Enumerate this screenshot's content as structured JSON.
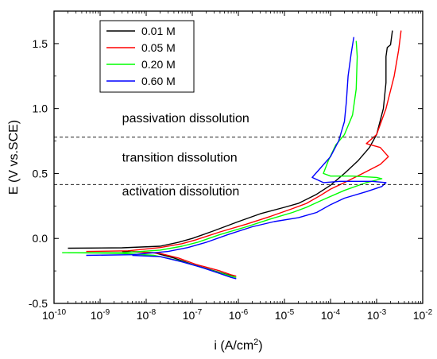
{
  "chart_data": {
    "type": "line",
    "title": "",
    "xlabel": {
      "base": "i (A/cm",
      "sup": "2",
      "tail": ")"
    },
    "ylabel": "E (V vs.SCE)",
    "xscale": "log",
    "xlim": [
      1e-10,
      0.01
    ],
    "ylim": [
      -0.5,
      1.75
    ],
    "grid": false,
    "legend_position": "top-left",
    "x_ticks": [
      {
        "value": 1e-10,
        "exp": "-10"
      },
      {
        "value": 1e-09,
        "exp": "-9"
      },
      {
        "value": 1e-08,
        "exp": "-8"
      },
      {
        "value": 1e-07,
        "exp": "-7"
      },
      {
        "value": 1e-06,
        "exp": "-6"
      },
      {
        "value": 1e-05,
        "exp": "-5"
      },
      {
        "value": 0.0001,
        "exp": "-4"
      },
      {
        "value": 0.001,
        "exp": "-3"
      },
      {
        "value": 0.01,
        "exp": "-2"
      }
    ],
    "y_ticks": [
      {
        "value": -0.5,
        "label": "-0.5"
      },
      {
        "value": 0.0,
        "label": "0.0"
      },
      {
        "value": 0.5,
        "label": "0.5"
      },
      {
        "value": 1.0,
        "label": "1.0"
      },
      {
        "value": 1.5,
        "label": "1.5"
      }
    ],
    "reference_lines": [
      {
        "y": 0.78,
        "style": "dashed"
      },
      {
        "y": 0.415,
        "style": "dashed"
      }
    ],
    "annotations": [
      {
        "text": "passivation dissolution",
        "x": 3e-09,
        "y": 0.895
      },
      {
        "text": "transition dissolution",
        "x": 3e-09,
        "y": 0.59
      },
      {
        "text": "activation dissolution",
        "x": 3e-09,
        "y": 0.33
      }
    ],
    "series": [
      {
        "name": "0.01 M",
        "color": "#000000",
        "anodic": [
          [
            2e-10,
            -0.075
          ],
          [
            3e-09,
            -0.072
          ],
          [
            2e-08,
            -0.06
          ],
          [
            5e-08,
            -0.03
          ],
          [
            1e-07,
            0.0
          ],
          [
            3e-07,
            0.06
          ],
          [
            1e-06,
            0.13
          ],
          [
            3e-06,
            0.19
          ],
          [
            1e-05,
            0.24
          ],
          [
            2e-05,
            0.27
          ],
          [
            5e-05,
            0.34
          ],
          [
            0.0001,
            0.41
          ],
          [
            0.0002,
            0.5
          ],
          [
            0.0004,
            0.6
          ],
          [
            0.0007,
            0.7
          ],
          [
            0.001,
            0.8
          ],
          [
            0.0014,
            1.0
          ],
          [
            0.0016,
            1.2
          ],
          [
            0.0016,
            1.4
          ],
          [
            0.0017,
            1.47
          ],
          [
            0.002,
            1.49
          ],
          [
            0.0022,
            1.6
          ]
        ],
        "cathodic": [
          [
            3e-09,
            -0.1
          ],
          [
            1.5e-08,
            -0.11
          ],
          [
            4e-08,
            -0.15
          ],
          [
            1e-07,
            -0.2
          ],
          [
            3e-07,
            -0.25
          ],
          [
            6e-07,
            -0.28
          ],
          [
            8e-07,
            -0.29
          ]
        ]
      },
      {
        "name": "0.05 M",
        "color": "#ff0000",
        "anodic": [
          [
            5e-10,
            -0.1
          ],
          [
            4e-09,
            -0.095
          ],
          [
            2e-08,
            -0.07
          ],
          [
            6e-08,
            -0.04
          ],
          [
            1.2e-07,
            -0.01
          ],
          [
            4e-07,
            0.05
          ],
          [
            1.5e-06,
            0.11
          ],
          [
            5e-06,
            0.17
          ],
          [
            1.5e-05,
            0.23
          ],
          [
            3e-05,
            0.27
          ],
          [
            6e-05,
            0.33
          ],
          [
            0.0001,
            0.38
          ],
          [
            0.0002,
            0.43
          ],
          [
            0.0005,
            0.5
          ],
          [
            0.0012,
            0.57
          ],
          [
            0.0018,
            0.63
          ],
          [
            0.0012,
            0.7
          ],
          [
            0.0006,
            0.73
          ],
          [
            0.001,
            0.8
          ],
          [
            0.0016,
            1.0
          ],
          [
            0.0024,
            1.25
          ],
          [
            0.003,
            1.45
          ],
          [
            0.0034,
            1.6
          ]
        ],
        "cathodic": [
          [
            5e-09,
            -0.1
          ],
          [
            2e-08,
            -0.115
          ],
          [
            5e-08,
            -0.15
          ],
          [
            1.2e-07,
            -0.2
          ],
          [
            4e-07,
            -0.25
          ],
          [
            7e-07,
            -0.28
          ],
          [
            9e-07,
            -0.29
          ]
        ]
      },
      {
        "name": "0.20 M",
        "color": "#00ff00",
        "anodic": [
          [
            1.5e-10,
            -0.11
          ],
          [
            3e-09,
            -0.11
          ],
          [
            2e-08,
            -0.09
          ],
          [
            6e-08,
            -0.06
          ],
          [
            1.3e-07,
            -0.03
          ],
          [
            4e-07,
            0.03
          ],
          [
            1.5e-06,
            0.09
          ],
          [
            5e-06,
            0.15
          ],
          [
            1.5e-05,
            0.2
          ],
          [
            3e-05,
            0.24
          ],
          [
            7e-05,
            0.3
          ],
          [
            0.0002,
            0.37
          ],
          [
            0.0006,
            0.43
          ],
          [
            0.0013,
            0.46
          ],
          [
            0.001,
            0.47
          ],
          [
            0.0003,
            0.48
          ],
          [
            0.0001,
            0.48
          ],
          [
            7e-05,
            0.5
          ],
          [
            9e-05,
            0.6
          ],
          [
            0.00013,
            0.72
          ],
          [
            0.0002,
            0.8
          ],
          [
            0.0003,
            0.95
          ],
          [
            0.00036,
            1.15
          ],
          [
            0.00038,
            1.4
          ],
          [
            0.00036,
            1.52
          ]
        ],
        "cathodic": [
          [
            2e-10,
            -0.11
          ],
          [
            3e-09,
            -0.115
          ],
          [
            1.5e-08,
            -0.13
          ],
          [
            5e-08,
            -0.17
          ],
          [
            1.2e-07,
            -0.21
          ],
          [
            3.5e-07,
            -0.26
          ],
          [
            7e-07,
            -0.29
          ],
          [
            9e-07,
            -0.3
          ]
        ]
      },
      {
        "name": "0.60 M",
        "color": "#0000ff",
        "anodic": [
          [
            5e-10,
            -0.13
          ],
          [
            5e-09,
            -0.125
          ],
          [
            3e-08,
            -0.1
          ],
          [
            8e-08,
            -0.07
          ],
          [
            2e-07,
            -0.03
          ],
          [
            6e-07,
            0.03
          ],
          [
            2e-06,
            0.09
          ],
          [
            6e-06,
            0.13
          ],
          [
            2e-05,
            0.16
          ],
          [
            5e-05,
            0.2
          ],
          [
            0.0001,
            0.26
          ],
          [
            0.0002,
            0.31
          ],
          [
            0.0006,
            0.36
          ],
          [
            0.0013,
            0.4
          ],
          [
            0.0016,
            0.43
          ],
          [
            0.0008,
            0.44
          ],
          [
            0.00016,
            0.44
          ],
          [
            7e-05,
            0.43
          ],
          [
            4e-05,
            0.47
          ],
          [
            6e-05,
            0.54
          ],
          [
            0.0001,
            0.63
          ],
          [
            0.00015,
            0.75
          ],
          [
            0.0002,
            0.9
          ],
          [
            0.00022,
            1.05
          ],
          [
            0.00024,
            1.25
          ],
          [
            0.00028,
            1.42
          ],
          [
            0.00032,
            1.55
          ]
        ],
        "cathodic": [
          [
            5e-09,
            -0.13
          ],
          [
            2e-08,
            -0.14
          ],
          [
            6e-08,
            -0.18
          ],
          [
            1.5e-07,
            -0.22
          ],
          [
            4e-07,
            -0.27
          ],
          [
            7e-07,
            -0.3
          ],
          [
            9e-07,
            -0.31
          ]
        ]
      }
    ]
  }
}
